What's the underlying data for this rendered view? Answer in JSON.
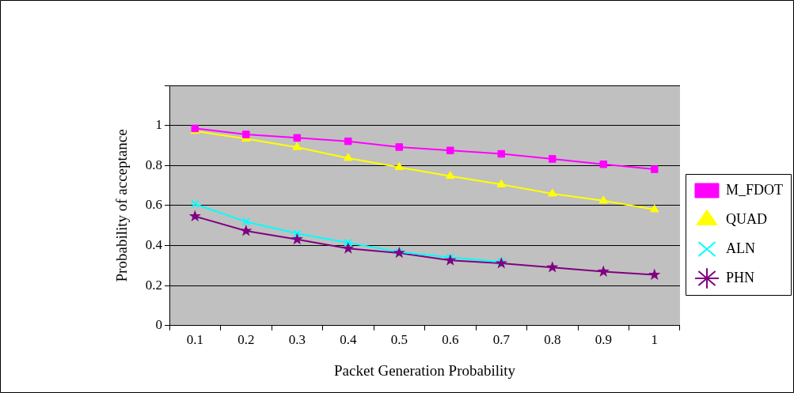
{
  "chart_data": {
    "type": "line",
    "xlabel": "Packet Generation Probability",
    "ylabel": "Probability of acceptance",
    "categories": [
      "0.1",
      "0.2",
      "0.3",
      "0.4",
      "0.5",
      "0.6",
      "0.7",
      "0.8",
      "0.9",
      "1"
    ],
    "series": [
      {
        "name": "M_FDOT",
        "color": "#ff00ff",
        "marker": "square",
        "values": [
          0.985,
          0.955,
          0.938,
          0.921,
          0.892,
          0.875,
          0.858,
          0.833,
          0.806,
          0.781
        ]
      },
      {
        "name": "QUAD",
        "color": "#ffff00",
        "marker": "triangle",
        "values": [
          0.972,
          0.933,
          0.891,
          0.837,
          0.791,
          0.747,
          0.705,
          0.659,
          0.624,
          0.58
        ]
      },
      {
        "name": "ALN",
        "color": "#00ffff",
        "marker": "cross",
        "values": [
          0.608,
          0.519,
          0.46,
          0.414,
          0.368,
          0.341,
          0.318,
          null,
          null,
          null
        ]
      },
      {
        "name": "PHN",
        "color": "#800080",
        "marker": "star",
        "values": [
          0.546,
          0.473,
          0.431,
          0.385,
          0.363,
          0.326,
          0.311,
          0.291,
          0.27,
          0.254
        ]
      }
    ],
    "ylim": [
      0,
      1.2
    ],
    "yticks": [
      0,
      0.2,
      0.4,
      0.6,
      0.8,
      1,
      {
        "value": 1.2,
        "label": null
      }
    ],
    "grid": "y",
    "legend": "right",
    "line_style": "solid"
  }
}
